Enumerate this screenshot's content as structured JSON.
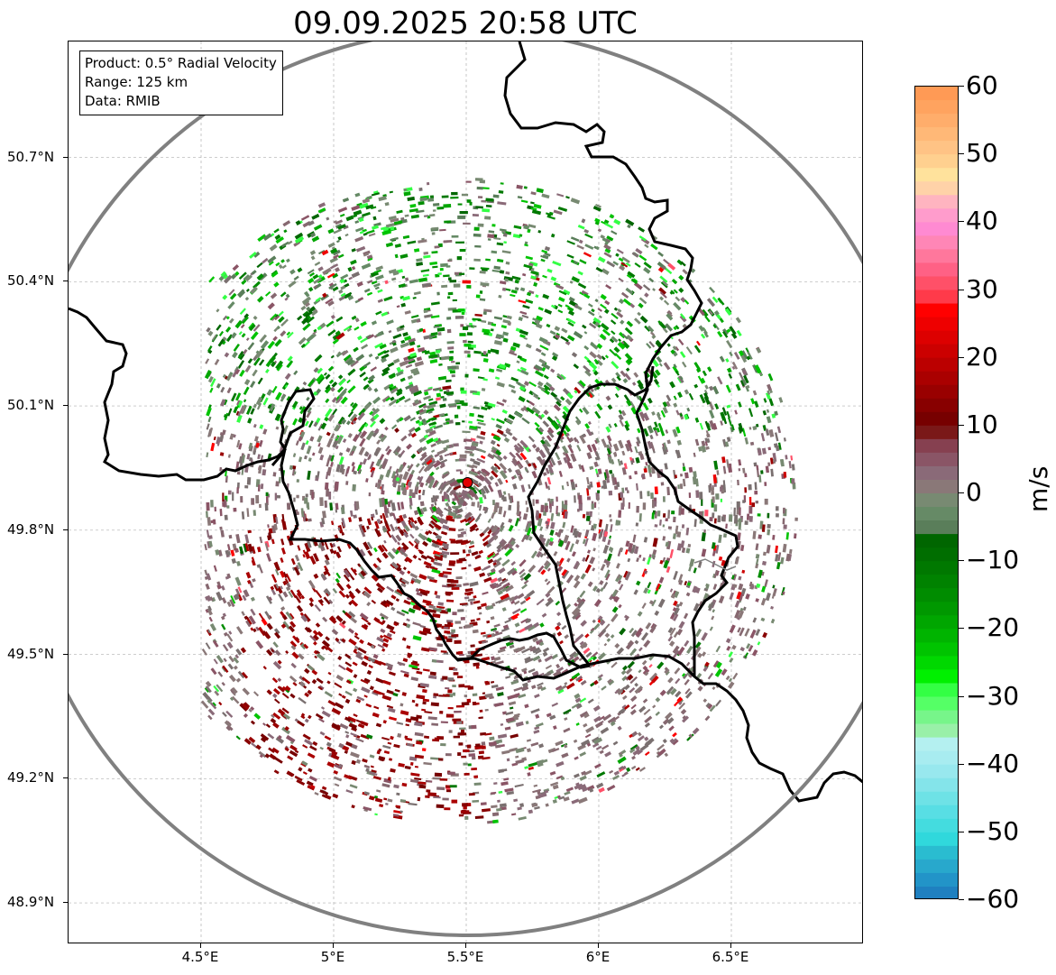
{
  "title": "09.09.2025 20:58 UTC",
  "info_box": {
    "product": "Product: 0.5° Radial Velocity",
    "range": "Range: 125 km",
    "data": "Data: RMIB"
  },
  "map": {
    "lon_range": [
      4.0,
      7.0
    ],
    "lat_range": [
      48.8,
      50.98
    ],
    "lat_ticks": [
      {
        "value": 48.9,
        "label": "48.9°N"
      },
      {
        "value": 49.2,
        "label": "49.2°N"
      },
      {
        "value": 49.5,
        "label": "49.5°N"
      },
      {
        "value": 49.8,
        "label": "49.8°N"
      },
      {
        "value": 50.1,
        "label": "50.1°N"
      },
      {
        "value": 50.4,
        "label": "50.4°N"
      },
      {
        "value": 50.7,
        "label": "50.7°N"
      }
    ],
    "lon_ticks": [
      {
        "value": 4.5,
        "label": "4.5°E"
      },
      {
        "value": 5.0,
        "label": "5°E"
      },
      {
        "value": 5.5,
        "label": "5.5°E"
      },
      {
        "value": 6.0,
        "label": "6°E"
      },
      {
        "value": 6.5,
        "label": "6.5°E"
      }
    ],
    "radar_site": {
      "lon": 5.505,
      "lat": 49.915
    },
    "range_ring_km": 125,
    "colors": {
      "range_ring": "#808080",
      "border": "#000000",
      "radar_marker": "#e00000",
      "gridline": "#b0b0b0"
    }
  },
  "colorbar": {
    "unit": "m/s",
    "min": -60,
    "max": 60,
    "ticks": [
      {
        "value": 60,
        "label": "60"
      },
      {
        "value": 50,
        "label": "50"
      },
      {
        "value": 40,
        "label": "40"
      },
      {
        "value": 30,
        "label": "30"
      },
      {
        "value": 20,
        "label": "20"
      },
      {
        "value": 10,
        "label": "10"
      },
      {
        "value": 0,
        "label": "0"
      },
      {
        "value": -10,
        "label": "−10"
      },
      {
        "value": -20,
        "label": "−20"
      },
      {
        "value": -30,
        "label": "−30"
      },
      {
        "value": -40,
        "label": "−40"
      },
      {
        "value": -50,
        "label": "−50"
      },
      {
        "value": -60,
        "label": "−60"
      }
    ],
    "bands": [
      {
        "from": 58,
        "to": 60,
        "color": "#ff9a55"
      },
      {
        "from": 56,
        "to": 58,
        "color": "#ffa35f"
      },
      {
        "from": 54,
        "to": 56,
        "color": "#ffad6b"
      },
      {
        "from": 52,
        "to": 54,
        "color": "#ffb877"
      },
      {
        "from": 50,
        "to": 52,
        "color": "#ffc385"
      },
      {
        "from": 48,
        "to": 50,
        "color": "#ffd08f"
      },
      {
        "from": 46,
        "to": 48,
        "color": "#ffe29c"
      },
      {
        "from": 44,
        "to": 46,
        "color": "#ffd2a8"
      },
      {
        "from": 42,
        "to": 44,
        "color": "#ffb4c0"
      },
      {
        "from": 40,
        "to": 42,
        "color": "#ff9ccc"
      },
      {
        "from": 38,
        "to": 40,
        "color": "#ff8ad2"
      },
      {
        "from": 36,
        "to": 38,
        "color": "#ff86b6"
      },
      {
        "from": 34,
        "to": 36,
        "color": "#ff779c"
      },
      {
        "from": 32,
        "to": 34,
        "color": "#ff6185"
      },
      {
        "from": 30,
        "to": 32,
        "color": "#ff5068"
      },
      {
        "from": 28,
        "to": 30,
        "color": "#ff3a4a"
      },
      {
        "from": 26,
        "to": 28,
        "color": "#ff0000"
      },
      {
        "from": 24,
        "to": 26,
        "color": "#ee0000"
      },
      {
        "from": 22,
        "to": 24,
        "color": "#dd0000"
      },
      {
        "from": 20,
        "to": 22,
        "color": "#cc0000"
      },
      {
        "from": 18,
        "to": 20,
        "color": "#bb0000"
      },
      {
        "from": 16,
        "to": 18,
        "color": "#aa0000"
      },
      {
        "from": 14,
        "to": 16,
        "color": "#990000"
      },
      {
        "from": 12,
        "to": 14,
        "color": "#880000"
      },
      {
        "from": 10,
        "to": 12,
        "color": "#770000"
      },
      {
        "from": 8,
        "to": 10,
        "color": "#7a1818"
      },
      {
        "from": 6,
        "to": 8,
        "color": "#864050"
      },
      {
        "from": 4,
        "to": 6,
        "color": "#8a5566"
      },
      {
        "from": 2,
        "to": 4,
        "color": "#8a6a78"
      },
      {
        "from": 0,
        "to": 2,
        "color": "#8a7878"
      },
      {
        "from": -2,
        "to": 0,
        "color": "#788a72"
      },
      {
        "from": -4,
        "to": -2,
        "color": "#668a66"
      },
      {
        "from": -6,
        "to": -4,
        "color": "#5a7e5a"
      },
      {
        "from": -8,
        "to": -6,
        "color": "#006600"
      },
      {
        "from": -10,
        "to": -8,
        "color": "#006e00"
      },
      {
        "from": -12,
        "to": -10,
        "color": "#007800"
      },
      {
        "from": -14,
        "to": -12,
        "color": "#008200"
      },
      {
        "from": -16,
        "to": -14,
        "color": "#008c00"
      },
      {
        "from": -18,
        "to": -16,
        "color": "#009800"
      },
      {
        "from": -20,
        "to": -18,
        "color": "#00a600"
      },
      {
        "from": -22,
        "to": -20,
        "color": "#00b400"
      },
      {
        "from": -24,
        "to": -22,
        "color": "#00c400"
      },
      {
        "from": -26,
        "to": -24,
        "color": "#00d800"
      },
      {
        "from": -28,
        "to": -26,
        "color": "#00f000"
      },
      {
        "from": -30,
        "to": -28,
        "color": "#33ff44"
      },
      {
        "from": -32,
        "to": -30,
        "color": "#55ff66"
      },
      {
        "from": -34,
        "to": -32,
        "color": "#77f58a"
      },
      {
        "from": -36,
        "to": -34,
        "color": "#99f0a8"
      },
      {
        "from": -38,
        "to": -36,
        "color": "#b4f0f0"
      },
      {
        "from": -40,
        "to": -38,
        "color": "#a8ecf0"
      },
      {
        "from": -42,
        "to": -40,
        "color": "#98e8ee"
      },
      {
        "from": -44,
        "to": -42,
        "color": "#84e4ea"
      },
      {
        "from": -46,
        "to": -44,
        "color": "#6ee2e6"
      },
      {
        "from": -48,
        "to": -46,
        "color": "#58dee4"
      },
      {
        "from": -50,
        "to": -48,
        "color": "#44dcdf"
      },
      {
        "from": -52,
        "to": -50,
        "color": "#30d8dc"
      },
      {
        "from": -54,
        "to": -52,
        "color": "#2abcd0"
      },
      {
        "from": -56,
        "to": -54,
        "color": "#28a8cc"
      },
      {
        "from": -58,
        "to": -56,
        "color": "#2294c8"
      },
      {
        "from": -60,
        "to": -58,
        "color": "#1f80c0"
      }
    ]
  }
}
